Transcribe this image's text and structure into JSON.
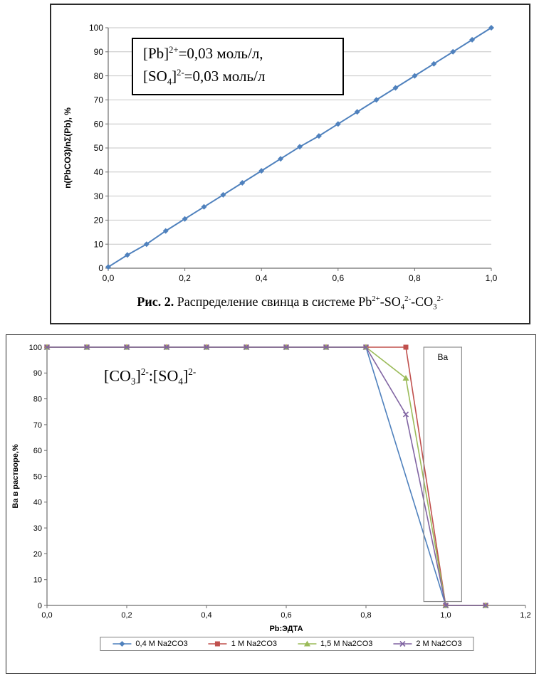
{
  "chart_data": [
    {
      "type": "line",
      "title": "",
      "ylabel": "n(PbCO3)/nΣ(Pb),  %",
      "xlabel": "",
      "xlim": [
        0,
        1.0
      ],
      "ylim": [
        0,
        100
      ],
      "xticks": [
        0,
        0.2,
        0.4,
        0.6,
        0.8,
        1.0
      ],
      "xtick_labels": [
        "0,0",
        "0,2",
        "0,4",
        "0,6",
        "0,8",
        "1,0"
      ],
      "yticks": [
        0,
        10,
        20,
        30,
        40,
        50,
        60,
        70,
        80,
        90,
        100
      ],
      "ytick_labels": [
        "0",
        "10",
        "20",
        "30",
        "40",
        "50",
        "60",
        "70",
        "80",
        "90",
        "100"
      ],
      "grid": true,
      "legend_position": "none",
      "annotation": "[Pb]^{2+}=0,03 моль/л,\n[SO_{4}]^{2-}=0,03 моль/л",
      "caption_prefix": "Рис. 2.",
      "caption_text": " Распределение свинца в системе Pb^{2+}-SO_{4}^{2-}-CO_{3}^{2-}",
      "series": [
        {
          "name": "n(PbCO3)/nΣ(Pb)",
          "color": "#4F81BD",
          "marker": "diamond",
          "x": [
            0,
            0.05,
            0.1,
            0.15,
            0.2,
            0.25,
            0.3,
            0.35,
            0.4,
            0.45,
            0.5,
            0.55,
            0.6,
            0.65,
            0.7,
            0.75,
            0.8,
            0.85,
            0.9,
            0.95,
            1.0
          ],
          "y": [
            0.5,
            5.5,
            10,
            15.5,
            20.5,
            25.5,
            30.5,
            35.5,
            40.5,
            45.5,
            50.5,
            55,
            60,
            65,
            70,
            75,
            80,
            85,
            90,
            95,
            100
          ]
        }
      ]
    },
    {
      "type": "line",
      "title": "",
      "ylabel": "Ва в растворе,%",
      "xlabel": "Pb:ЭДТА",
      "xlim": [
        0,
        1.2
      ],
      "ylim": [
        0,
        100
      ],
      "xticks": [
        0,
        0.2,
        0.4,
        0.6,
        0.8,
        1.0,
        1.2
      ],
      "xtick_labels": [
        "0,0",
        "0,2",
        "0,4",
        "0,6",
        "0,8",
        "1,0",
        "1,2"
      ],
      "yticks": [
        0,
        10,
        20,
        30,
        40,
        50,
        60,
        70,
        80,
        90,
        100
      ],
      "ytick_labels": [
        "0",
        "10",
        "20",
        "30",
        "40",
        "50",
        "60",
        "70",
        "80",
        "90",
        "100"
      ],
      "grid": false,
      "legend_position": "bottom",
      "annotation": "[CO_{3}]^{2-}:[SO_{4}]^{2-}",
      "highlight_box": {
        "x0": 0.945,
        "x1": 1.04,
        "y0": 1.5,
        "y1": 100,
        "label": "Ва"
      },
      "series": [
        {
          "name": "0,4 M Na2CO3",
          "color": "#4F81BD",
          "marker": "diamond",
          "x": [
            0,
            0.1,
            0.2,
            0.3,
            0.4,
            0.5,
            0.6,
            0.7,
            0.8,
            1.0,
            1.1
          ],
          "y": [
            100,
            100,
            100,
            100,
            100,
            100,
            100,
            100,
            100,
            0,
            0
          ]
        },
        {
          "name": "1 M Na2CO3",
          "color": "#C0504D",
          "marker": "square",
          "x": [
            0,
            0.1,
            0.2,
            0.3,
            0.4,
            0.5,
            0.6,
            0.7,
            0.8,
            0.9,
            1.0,
            1.1
          ],
          "y": [
            100,
            100,
            100,
            100,
            100,
            100,
            100,
            100,
            100,
            100,
            0,
            0
          ]
        },
        {
          "name": "1,5 M Na2CO3",
          "color": "#9BBB59",
          "marker": "triangle",
          "x": [
            0,
            0.1,
            0.2,
            0.3,
            0.4,
            0.5,
            0.6,
            0.7,
            0.8,
            0.9,
            1.0,
            1.1
          ],
          "y": [
            100,
            100,
            100,
            100,
            100,
            100,
            100,
            100,
            100,
            88,
            0,
            0
          ]
        },
        {
          "name": "2 M Na2CO3",
          "color": "#8064A2",
          "marker": "x",
          "x": [
            0,
            0.1,
            0.2,
            0.3,
            0.4,
            0.5,
            0.6,
            0.7,
            0.8,
            0.9,
            1.0,
            1.1
          ],
          "y": [
            100,
            100,
            100,
            100,
            100,
            100,
            100,
            100,
            100,
            74,
            0,
            0
          ]
        }
      ]
    }
  ]
}
